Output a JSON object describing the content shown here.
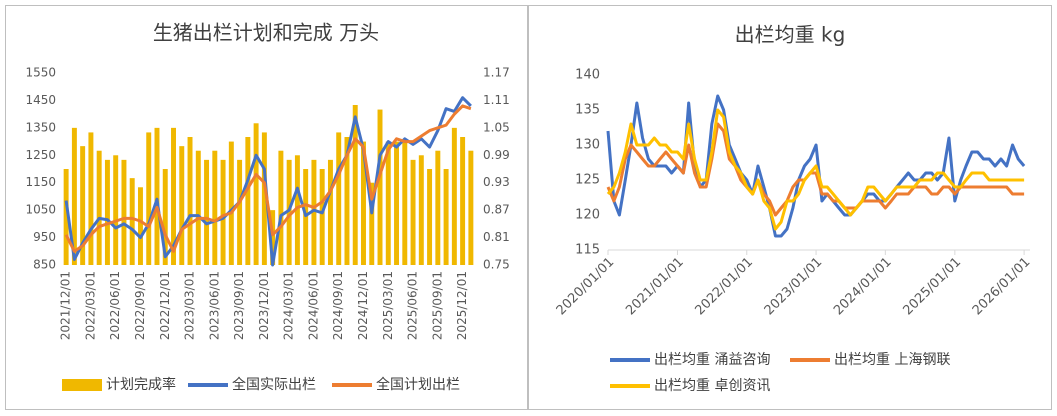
{
  "chart_data": [
    {
      "type": "bar",
      "title": "生猪出栏计划和完成 万头",
      "legend": "bottom",
      "grid": false,
      "categories": [
        "2021/12/01",
        null,
        null,
        "2022/03/01",
        null,
        null,
        "2022/06/01",
        null,
        null,
        "2022/09/01",
        null,
        null,
        "2022/12/01",
        null,
        null,
        "2023/03/01",
        null,
        null,
        "2023/06/01",
        null,
        null,
        "2023/09/01",
        null,
        null,
        "2023/12/01",
        null,
        null,
        "2024/03/01",
        null,
        null,
        "2024/06/01",
        null,
        null,
        "2024/09/01",
        null,
        null,
        "2024/12/01",
        null,
        null,
        "2025/03/01",
        null,
        null,
        "2025/06/01",
        null,
        null,
        "2025/09/01",
        null,
        null,
        "2025/12/01",
        null
      ],
      "ylim": [
        850,
        1550
      ],
      "yticks": [
        850,
        950,
        1050,
        1150,
        1250,
        1350,
        1450,
        1550
      ],
      "y2lim": [
        0.75,
        1.17
      ],
      "y2ticks": [
        0.75,
        0.81,
        0.87,
        0.93,
        0.99,
        1.05,
        1.11,
        1.17
      ],
      "series": [
        {
          "name": "计划完成率",
          "type": "bar",
          "axis": "y2",
          "color": "#f0b800",
          "values": [
            0.96,
            1.05,
            1.01,
            1.04,
            1.0,
            0.98,
            0.99,
            0.98,
            0.94,
            0.92,
            1.04,
            1.05,
            0.96,
            1.05,
            1.01,
            1.03,
            1.0,
            0.98,
            1.0,
            0.98,
            1.02,
            0.98,
            1.03,
            1.06,
            1.04,
            0.87,
            1.0,
            0.98,
            0.99,
            0.96,
            0.98,
            0.96,
            0.98,
            1.04,
            1.03,
            1.1,
            1.02,
            0.93,
            1.09,
            1.02,
            1.02,
            1.02,
            0.98,
            0.99,
            0.96,
            1.0,
            0.96,
            1.05,
            1.03,
            1.0
          ]
        },
        {
          "name": "全国实际出栏",
          "type": "line",
          "color": "#4472c4",
          "values": [
            1085,
            870,
            930,
            980,
            1020,
            1015,
            985,
            1000,
            980,
            950,
            1000,
            1090,
            880,
            920,
            980,
            1030,
            1030,
            1000,
            1010,
            1020,
            1050,
            1080,
            1160,
            1250,
            1200,
            850,
            1030,
            1050,
            1130,
            1030,
            1050,
            1040,
            1120,
            1200,
            1250,
            1390,
            1270,
            1040,
            1250,
            1300,
            1280,
            1310,
            1290,
            1310,
            1280,
            1340,
            1420,
            1410,
            1460,
            1430
          ]
        },
        {
          "name": "全国计划出栏",
          "type": "line",
          "color": "#ed7d31",
          "values": [
            960,
            900,
            920,
            960,
            990,
            1000,
            1010,
            1020,
            1020,
            1010,
            990,
            1060,
            960,
            900,
            980,
            1000,
            1020,
            1020,
            1010,
            1030,
            1040,
            1080,
            1130,
            1180,
            1150,
            960,
            990,
            1030,
            1060,
            1070,
            1060,
            1080,
            1120,
            1180,
            1250,
            1310,
            1280,
            1090,
            1180,
            1270,
            1310,
            1300,
            1300,
            1320,
            1340,
            1350,
            1360,
            1400,
            1430,
            1420
          ]
        }
      ]
    },
    {
      "type": "line",
      "title": "出栏均重 kg",
      "legend": "bottom",
      "grid": false,
      "x": [
        "2020/01/01",
        "2020/02/01",
        "2020/03/01",
        "2020/04/01",
        "2020/05/01",
        "2020/06/01",
        "2020/07/01",
        "2020/08/01",
        "2020/09/01",
        "2020/10/01",
        "2020/11/01",
        "2020/12/01",
        "2021/01/01",
        "2021/02/01",
        "2021/03/01",
        "2021/04/01",
        "2021/05/01",
        "2021/06/01",
        "2021/07/01",
        "2021/08/01",
        "2021/09/01",
        "2021/10/01",
        "2021/11/01",
        "2021/12/01",
        "2022/01/01",
        "2022/02/01",
        "2022/03/01",
        "2022/04/01",
        "2022/05/01",
        "2022/06/01",
        "2022/07/01",
        "2022/08/01",
        "2022/09/01",
        "2022/10/01",
        "2022/11/01",
        "2022/12/01",
        "2023/01/01",
        "2023/02/01",
        "2023/03/01",
        "2023/04/01",
        "2023/05/01",
        "2023/06/01",
        "2023/07/01",
        "2023/08/01",
        "2023/09/01",
        "2023/10/01",
        "2023/11/01",
        "2023/12/01",
        "2024/01/01",
        "2024/02/01",
        "2024/03/01",
        "2024/04/01",
        "2024/05/01",
        "2024/06/01",
        "2024/07/01",
        "2024/08/01",
        "2024/09/01",
        "2024/10/01",
        "2024/11/01",
        "2024/12/01",
        "2025/01/01",
        "2025/02/01",
        "2025/03/01",
        "2025/04/01",
        "2025/05/01",
        "2025/06/01",
        "2025/07/01",
        "2025/08/01",
        "2025/09/01",
        "2025/10/01",
        "2025/11/01",
        "2025/12/01",
        "2026/01/01"
      ],
      "xlim": [
        "2020/01/01",
        "2026/02/01"
      ],
      "xticks": [
        "2020/01/01",
        "2021/01/01",
        "2022/01/01",
        "2023/01/01",
        "2024/01/01",
        "2025/01/01",
        "2026/01/01"
      ],
      "ylim": [
        115,
        140
      ],
      "yticks": [
        115,
        120,
        125,
        130,
        135,
        140
      ],
      "series": [
        {
          "name": "出栏均重 涌益咨询",
          "color": "#4472c4",
          "values": [
            132,
            122,
            120,
            125,
            130,
            136,
            131,
            128,
            127,
            127,
            127,
            126,
            127,
            126,
            136,
            127,
            124,
            125,
            133,
            137,
            135,
            130,
            128,
            126,
            125,
            123,
            127,
            124,
            121,
            117,
            117,
            118,
            121,
            125,
            127,
            128,
            130,
            122,
            123,
            122,
            121,
            120,
            120,
            121,
            122,
            123,
            123,
            122,
            122,
            123,
            124,
            125,
            126,
            125,
            125,
            126,
            126,
            125,
            126,
            131,
            122,
            125,
            127,
            129,
            129,
            128,
            128,
            127,
            128,
            127,
            130,
            128,
            127
          ]
        },
        {
          "name": "出栏均重 上海钢联",
          "color": "#ed7d31",
          "values": [
            124,
            122,
            124,
            128,
            130,
            129,
            128,
            127,
            127,
            128,
            129,
            128,
            127,
            126,
            130,
            126,
            124,
            124,
            128,
            133,
            132,
            128,
            127,
            125,
            124,
            123,
            125,
            123,
            122,
            120,
            121,
            122,
            124,
            125,
            125,
            126,
            126,
            123,
            123,
            122,
            122,
            121,
            121,
            121,
            122,
            122,
            122,
            122,
            121,
            122,
            123,
            123,
            123,
            124,
            124,
            124,
            123,
            123,
            124,
            124,
            123,
            124,
            124,
            124,
            124,
            124,
            124,
            124,
            124,
            124,
            123,
            123,
            123
          ]
        },
        {
          "name": "出栏均重 卓创资讯",
          "color": "#ffc000",
          "values": [
            123,
            124,
            126,
            129,
            133,
            130,
            130,
            130,
            131,
            130,
            130,
            129,
            129,
            128,
            133,
            128,
            125,
            125,
            129,
            135,
            134,
            129,
            127,
            126,
            124,
            123,
            125,
            122,
            121,
            118,
            119,
            122,
            122,
            123,
            125,
            126,
            127,
            124,
            124,
            123,
            122,
            121,
            120,
            121,
            122,
            124,
            124,
            123,
            122,
            123,
            124,
            124,
            124,
            124,
            125,
            125,
            125,
            126,
            126,
            125,
            124,
            124,
            125,
            126,
            126,
            126,
            125,
            125,
            125,
            125,
            125,
            125,
            125
          ]
        }
      ]
    }
  ]
}
